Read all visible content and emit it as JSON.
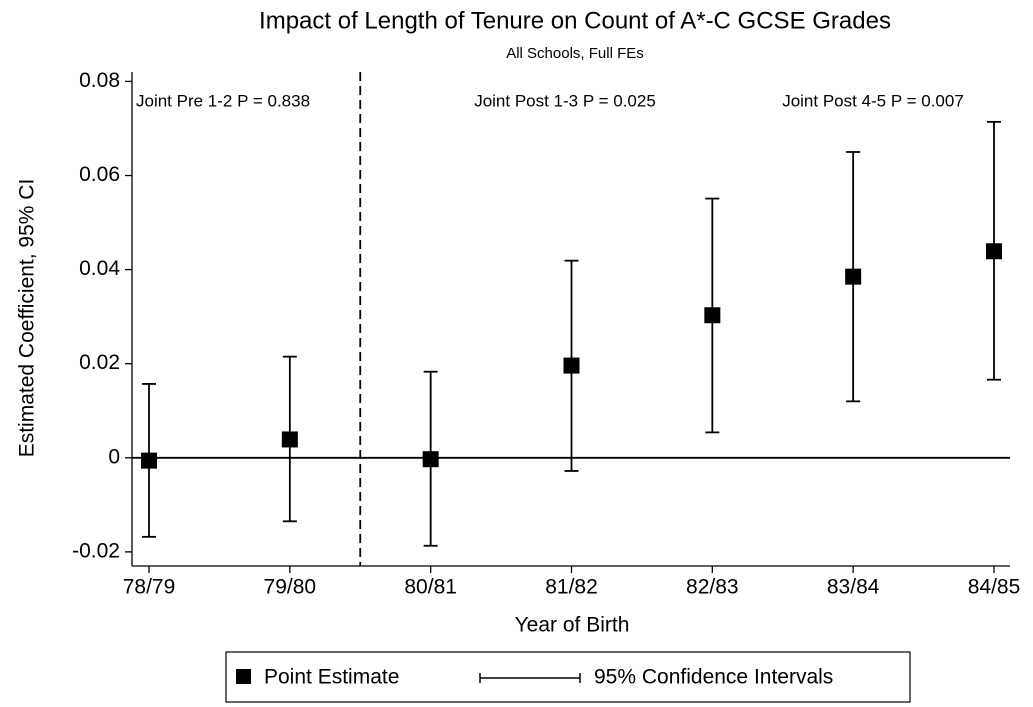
{
  "chart_data": {
    "type": "errorbar",
    "title": "Impact of Length of Tenure on Count of A*-C GCSE Grades",
    "subtitle": "All Schools, Full FEs",
    "y_label": "Estimated Coefficient, 95% CI",
    "x_label": "Year of Birth",
    "categories": [
      "78/79",
      "79/80",
      "80/81",
      "81/82",
      "82/83",
      "83/84",
      "84/85"
    ],
    "series": [
      {
        "name": "Point Estimate",
        "color": "#000000",
        "values": [
          -0.0006,
          0.0039,
          -0.0003,
          0.0196,
          0.0303,
          0.0385,
          0.0439
        ]
      }
    ],
    "intervals": {
      "name": "95% Confidence Intervals",
      "color": "#000000",
      "lower": [
        -0.0168,
        -0.0135,
        -0.0187,
        -0.0028,
        0.0054,
        0.012,
        0.0166
      ],
      "upper": [
        0.0157,
        0.0215,
        0.0183,
        0.0419,
        0.0551,
        0.065,
        0.0714
      ]
    },
    "annotations": [
      "Joint Pre 1-2 P = 0.838",
      "Joint Post 1-3 P = 0.025",
      "Joint Post 4-5 P = 0.007"
    ],
    "ylim": [
      -0.023,
      0.082
    ],
    "yticks": [
      0.08,
      0.06,
      0.04,
      0.02,
      0,
      -0.02
    ],
    "grid": false
  }
}
